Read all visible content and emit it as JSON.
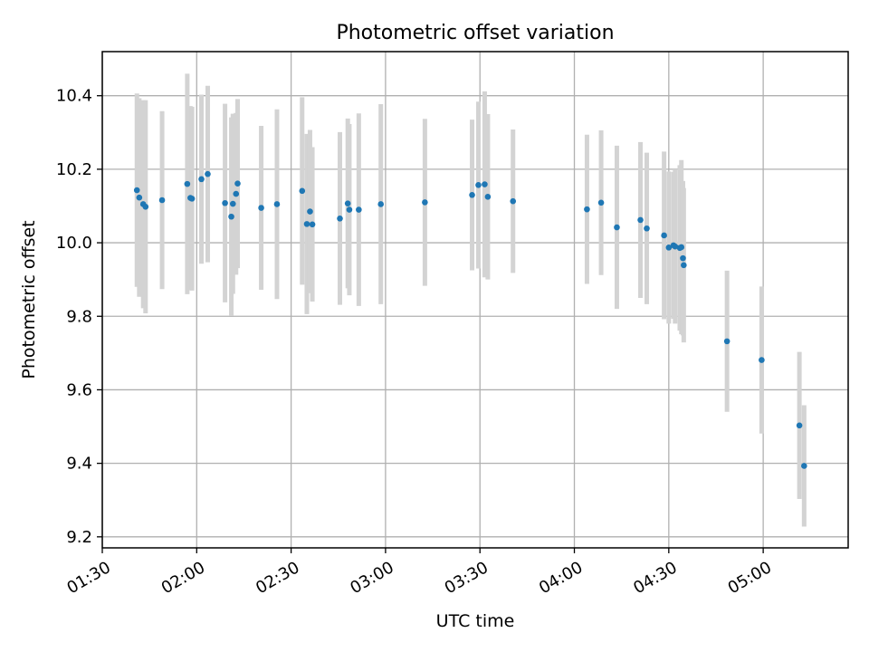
{
  "chart_data": {
    "type": "scatter",
    "title": "Photometric offset variation",
    "xlabel": "UTC time",
    "ylabel": "Photometric offset",
    "x_tick_labels": [
      "01:30",
      "02:00",
      "02:30",
      "03:00",
      "03:30",
      "04:00",
      "04:30",
      "05:00"
    ],
    "y_tick_labels": [
      "9.2",
      "9.4",
      "9.6",
      "9.8",
      "10.0",
      "10.2",
      "10.4"
    ],
    "xlim": [
      "01:30",
      "05:27"
    ],
    "ylim": [
      9.17,
      10.52
    ],
    "grid": true,
    "colors": {
      "marker": "#1f77b4",
      "errorbar": "#d3d3d3",
      "grid": "#b0b0b0"
    },
    "series": [
      {
        "x": [
          "01:41:00",
          "01:41:45",
          "01:43:00",
          "01:43:45",
          "01:49:00",
          "01:57:00",
          "01:58:00",
          "01:58:30",
          "02:01:30",
          "02:03:30",
          "02:09:00",
          "02:11:00",
          "02:11:30",
          "02:12:30",
          "02:13:00",
          "02:20:30",
          "02:25:30",
          "02:33:30",
          "02:35:00",
          "02:36:00",
          "02:36:45",
          "02:45:30",
          "02:48:00",
          "02:48:30",
          "02:51:30",
          "02:58:30",
          "03:12:30",
          "03:27:30",
          "03:29:30",
          "03:31:30",
          "03:32:30",
          "03:40:30",
          "04:04:00",
          "04:08:30",
          "04:13:30",
          "04:21:00",
          "04:23:00",
          "04:28:30",
          "04:30:00",
          "04:31:30",
          "04:32:00",
          "04:33:30",
          "04:34:00",
          "04:34:30",
          "04:34:45",
          "04:48:30",
          "04:59:30",
          "05:11:30",
          "05:13:00"
        ],
        "y": [
          10.143,
          10.123,
          10.105,
          10.098,
          10.116,
          10.16,
          10.122,
          10.12,
          10.173,
          10.187,
          10.108,
          10.071,
          10.106,
          10.133,
          10.161,
          10.095,
          10.105,
          10.141,
          10.051,
          10.085,
          10.05,
          10.066,
          10.107,
          10.09,
          10.09,
          10.105,
          10.11,
          10.13,
          10.157,
          10.159,
          10.125,
          10.113,
          10.091,
          10.109,
          10.042,
          10.062,
          10.039,
          10.02,
          9.987,
          9.993,
          9.99,
          9.986,
          9.988,
          9.958,
          9.939,
          9.732,
          9.681,
          9.503,
          9.393
        ],
        "yerr": [
          0.263,
          0.27,
          0.283,
          0.29,
          0.242,
          0.3,
          0.25,
          0.25,
          0.23,
          0.24,
          0.27,
          0.27,
          0.245,
          0.22,
          0.23,
          0.223,
          0.258,
          0.255,
          0.245,
          0.222,
          0.21,
          0.235,
          0.231,
          0.233,
          0.262,
          0.272,
          0.227,
          0.205,
          0.227,
          0.253,
          0.225,
          0.195,
          0.203,
          0.197,
          0.222,
          0.212,
          0.206,
          0.228,
          0.207,
          0.2,
          0.21,
          0.225,
          0.237,
          0.21,
          0.21,
          0.192,
          0.2,
          0.2,
          0.165
        ]
      }
    ]
  }
}
